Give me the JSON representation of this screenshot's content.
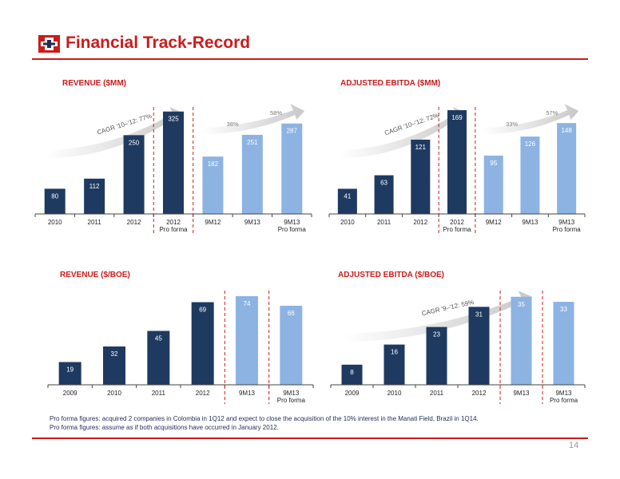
{
  "title": "Financial Track-Record",
  "page_number": "14",
  "colors": {
    "accent": "#cc1b1b",
    "dark_bar": "#1f3a60",
    "light_bar": "#8db3e2",
    "bar_label_dark": "#ffffff",
    "bar_label_light": "#ffffff"
  },
  "footnotes": [
    "Pro forma figures: acquired 2 companies in Colombia in 1Q12 and expect to close the acquisition of the 10% interest in the Manati Field, Brazil in 1Q14.",
    "Pro forma figures: assume as if both acquisitions have occurred in January 2012."
  ],
  "chart_data": [
    {
      "type": "bar",
      "title": "REVENUE ($MM)",
      "categories": [
        "2010",
        "2011",
        "2012",
        "2012\nPro forma",
        "9M12",
        "9M13",
        "9M13\nPro forma"
      ],
      "values": [
        80,
        112,
        250,
        325,
        182,
        251,
        287
      ],
      "bar_shades": [
        "dark",
        "dark",
        "dark",
        "dark",
        "light",
        "light",
        "light"
      ],
      "ylim": [
        0,
        380
      ],
      "dividers_after": [
        2,
        3
      ],
      "annotations": [
        {
          "text": "CAGR '10–'12: 77%",
          "kind": "arrow",
          "from": 0,
          "to": 3
        },
        {
          "text": "38%",
          "kind": "arrow-label",
          "at": 4.5
        },
        {
          "text": "58%",
          "kind": "arrow-label",
          "at": 5.6
        }
      ]
    },
    {
      "type": "bar",
      "title": "ADJUSTED EBITDA ($MM)",
      "categories": [
        "2010",
        "2011",
        "2012",
        "2012\nPro forma",
        "9M12",
        "9M13",
        "9M13\nPro forma"
      ],
      "values": [
        41,
        63,
        121,
        169,
        95,
        126,
        148
      ],
      "bar_shades": [
        "dark",
        "dark",
        "dark",
        "dark",
        "light",
        "light",
        "light"
      ],
      "ylim": [
        0,
        195
      ],
      "dividers_after": [
        2,
        3
      ],
      "annotations": [
        {
          "text": "CAGR '10–'12: 72%",
          "kind": "arrow",
          "from": 0,
          "to": 3
        },
        {
          "text": "33%",
          "kind": "arrow-label",
          "at": 4.5
        },
        {
          "text": "57%",
          "kind": "arrow-label",
          "at": 5.6
        }
      ]
    },
    {
      "type": "bar",
      "title": "REVENUE ($/BOE)",
      "categories": [
        "2009",
        "2010",
        "2011",
        "2012",
        "9M13",
        "9M13\nPro forma"
      ],
      "values": [
        19,
        32,
        45,
        69,
        74,
        66
      ],
      "bar_shades": [
        "dark",
        "dark",
        "dark",
        "dark",
        "light",
        "light"
      ],
      "ylim": [
        0,
        84
      ],
      "dividers_after": [
        3,
        4
      ],
      "annotations": []
    },
    {
      "type": "bar",
      "title": "ADJUSTED EBITDA ($/BOE)",
      "categories": [
        "2009",
        "2010",
        "2011",
        "2012",
        "9M13",
        "9M13\nPro forma"
      ],
      "values": [
        8,
        16,
        23,
        31,
        35,
        33
      ],
      "bar_shades": [
        "dark",
        "dark",
        "dark",
        "dark",
        "light",
        "light"
      ],
      "ylim": [
        0,
        40
      ],
      "dividers_after": [
        3,
        4
      ],
      "annotations": [
        {
          "text": "CAGR '9–'12: 59%",
          "kind": "arrow",
          "from": 0,
          "to": 4
        }
      ]
    }
  ]
}
